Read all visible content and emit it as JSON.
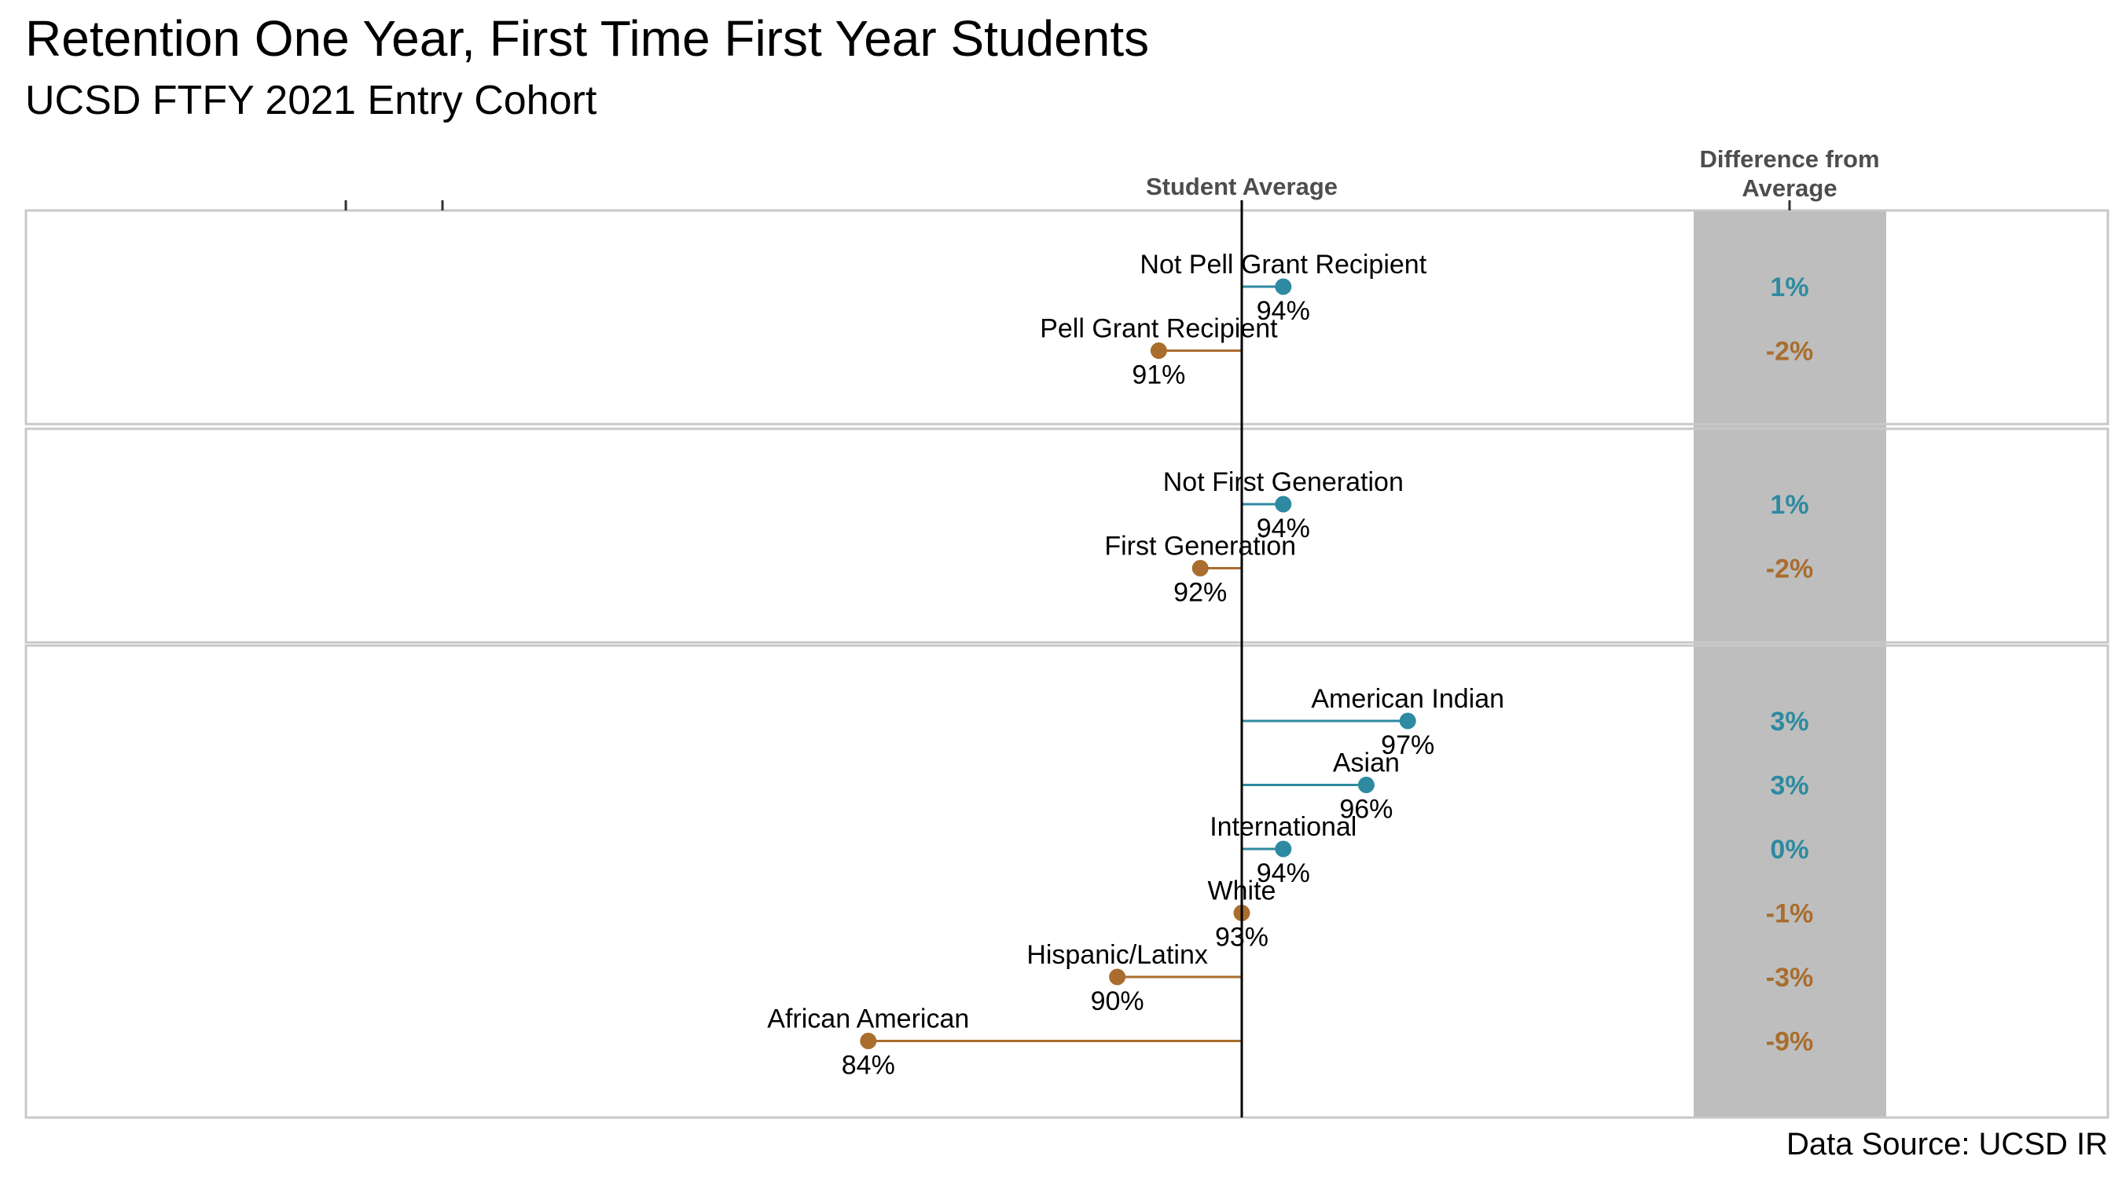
{
  "title": "Retention One Year, First Time First Year Students",
  "subtitle": "UCSD FTFY 2021 Entry Cohort",
  "source": "Data Source: UCSD IR",
  "colors": {
    "above": "#2e8aa0",
    "below": "#a96d2e",
    "panel": "#bebebe",
    "frame": "#c8c8c8"
  },
  "chart_data": {
    "type": "dot-difference",
    "reference_label": "Student Average",
    "difference_header": [
      "Difference from",
      "Average"
    ],
    "groups": [
      {
        "items": [
          {
            "label": "Not Pell Grant Recipient",
            "value": 94,
            "value_label": "94%",
            "diff": 1,
            "diff_label": "1%"
          },
          {
            "label": "Pell Grant Recipient",
            "value": 91,
            "value_label": "91%",
            "diff": -2,
            "diff_label": "-2%"
          }
        ]
      },
      {
        "items": [
          {
            "label": "Not First Generation",
            "value": 94,
            "value_label": "94%",
            "diff": 1,
            "diff_label": "1%"
          },
          {
            "label": "First Generation",
            "value": 92,
            "value_label": "92%",
            "diff": -2,
            "diff_label": "-2%"
          }
        ]
      },
      {
        "items": [
          {
            "label": "American Indian",
            "value": 97,
            "value_label": "97%",
            "diff": 3,
            "diff_label": "3%"
          },
          {
            "label": "Asian",
            "value": 96,
            "value_label": "96%",
            "diff": 3,
            "diff_label": "3%"
          },
          {
            "label": "International",
            "value": 94,
            "value_label": "94%",
            "diff": 0,
            "diff_label": "0%"
          },
          {
            "label": "White",
            "value": 93,
            "value_label": "93%",
            "diff": -1,
            "diff_label": "-1%"
          },
          {
            "label": "Hispanic/Latinx",
            "value": 90,
            "value_label": "90%",
            "diff": -3,
            "diff_label": "-3%"
          },
          {
            "label": "African American",
            "value": 84,
            "value_label": "84%",
            "diff": -9,
            "diff_label": "-9%"
          }
        ]
      }
    ]
  }
}
